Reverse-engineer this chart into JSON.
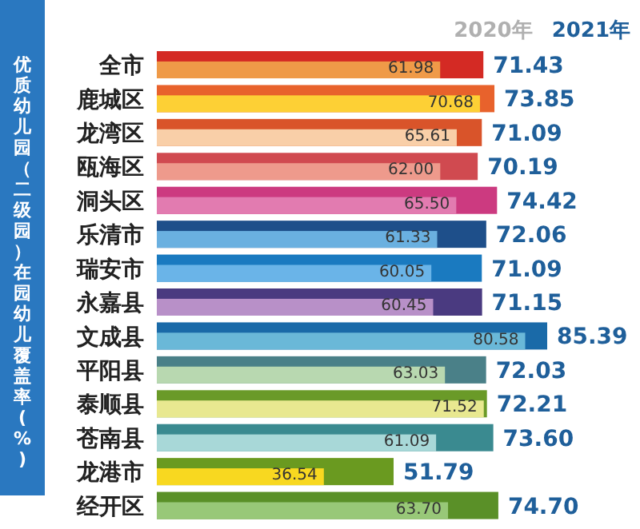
{
  "chart_data": {
    "type": "bar",
    "orientation": "horizontal",
    "ylabel": "优质幼儿园（二级园）在园幼儿覆盖率(%)",
    "categories": [
      "全市",
      "鹿城区",
      "龙湾区",
      "瓯海区",
      "洞头区",
      "乐清市",
      "瑞安市",
      "永嘉县",
      "文成县",
      "平阳县",
      "泰顺县",
      "苍南县",
      "龙港市",
      "经开区"
    ],
    "series": [
      {
        "name": "2021年",
        "color": "#1f5f9a",
        "values": [
          71.43,
          73.85,
          71.09,
          70.19,
          74.42,
          72.06,
          71.09,
          71.15,
          85.39,
          72.03,
          72.21,
          73.6,
          51.79,
          74.7
        ],
        "value_labels": [
          "71.43",
          "73.85",
          "71.09",
          "70.19",
          "74.42",
          "72.06",
          "71.09",
          "71.15",
          "85.39",
          "72.03",
          "72.21",
          "73.60",
          "51.79",
          "74.70"
        ],
        "colors": [
          "#d42a24",
          "#e8622c",
          "#d9542a",
          "#d04a50",
          "#cc3a80",
          "#1e4f8a",
          "#1a7ac0",
          "#4a3a80",
          "#1a6aa8",
          "#4a8088",
          "#6a9a28",
          "#3a8a90",
          "#6a9a20",
          "#5a9028"
        ]
      },
      {
        "name": "2020年",
        "color": "#b0b0b0",
        "values": [
          61.98,
          70.68,
          65.61,
          62.0,
          65.5,
          61.33,
          60.05,
          60.45,
          80.58,
          63.03,
          71.52,
          61.09,
          36.54,
          63.7
        ],
        "value_labels": [
          "61.98",
          "70.68",
          "65.61",
          "62.00",
          "65.50",
          "61.33",
          "60.05",
          "60.45",
          "80.58",
          "63.03",
          "71.52",
          "61.09",
          "36.54",
          "63.70"
        ],
        "colors": [
          "#ef9a48",
          "#fdd035",
          "#f9cfa8",
          "#ee9a8c",
          "#e27bb0",
          "#6ab0e0",
          "#6ab4e8",
          "#b890c8",
          "#6ab8d8",
          "#b8d8b0",
          "#e8e890",
          "#a8d8d8",
          "#f8d820",
          "#98c878"
        ]
      }
    ],
    "tick_labels": "y",
    "legend": "top right",
    "grid": false
  }
}
